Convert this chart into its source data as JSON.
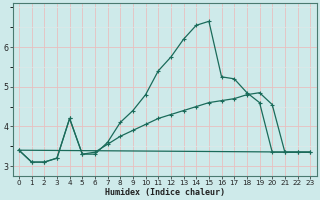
{
  "xlabel": "Humidex (Indice chaleur)",
  "bg_color": "#ceeaea",
  "grid_major_color": "#e8c0c0",
  "grid_minor_color": "#dde8e8",
  "line_color": "#1a6b5a",
  "x_values": [
    0,
    1,
    2,
    3,
    4,
    5,
    6,
    7,
    8,
    9,
    10,
    11,
    12,
    13,
    14,
    15,
    16,
    17,
    18,
    19,
    20,
    21,
    22,
    23
  ],
  "curve1": [
    3.4,
    3.1,
    3.1,
    3.2,
    4.2,
    3.3,
    3.3,
    3.6,
    4.1,
    4.4,
    4.8,
    5.4,
    5.75,
    6.2,
    6.55,
    6.65,
    5.25,
    5.2,
    4.85,
    4.6,
    3.35,
    3.35,
    3.35,
    3.35
  ],
  "curve2": [
    3.4,
    3.1,
    3.1,
    3.2,
    4.2,
    3.3,
    3.35,
    3.55,
    3.75,
    3.9,
    4.05,
    4.2,
    4.3,
    4.4,
    4.5,
    4.6,
    4.65,
    4.7,
    4.8,
    4.85,
    4.55,
    3.35,
    3.35,
    3.35
  ],
  "curve3_x": [
    0,
    23
  ],
  "curve3_y": [
    3.4,
    3.35
  ],
  "ylim": [
    2.75,
    7.1
  ],
  "xlim": [
    -0.5,
    23.5
  ],
  "yticks": [
    3,
    4,
    5,
    6
  ],
  "xticks": [
    0,
    1,
    2,
    3,
    4,
    5,
    6,
    7,
    8,
    9,
    10,
    11,
    12,
    13,
    14,
    15,
    16,
    17,
    18,
    19,
    20,
    21,
    22,
    23
  ],
  "tick_fontsize": 5.2,
  "xlabel_fontsize": 6.0
}
